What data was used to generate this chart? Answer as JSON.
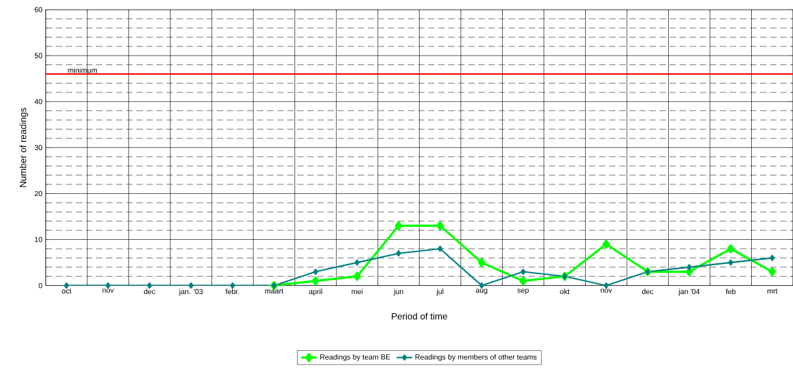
{
  "chart_data": {
    "type": "line",
    "xlabel": "Period of time",
    "ylabel": "Number of readings",
    "categories": [
      "oct",
      "nov",
      "dec",
      "jan. '03",
      "febr.",
      "maart",
      "april",
      "mei",
      "jun",
      "jul",
      "aug",
      "sep",
      "okt",
      "nov",
      "dec",
      "jan '04",
      "feb",
      "mrt"
    ],
    "series": [
      {
        "name": "Readings by team BE",
        "color": "#00ff00",
        "values": [
          null,
          null,
          null,
          null,
          null,
          0,
          1,
          2,
          13,
          13,
          5,
          1,
          2,
          9,
          3,
          3,
          8,
          3
        ]
      },
      {
        "name": "Readings by members of other teams",
        "color": "#008080",
        "values": [
          0,
          0,
          0,
          0,
          0,
          0,
          3,
          5,
          7,
          8,
          0,
          3,
          2,
          0,
          3,
          4,
          5,
          6
        ]
      }
    ],
    "ylim": [
      0,
      60
    ],
    "yticks": [
      0,
      10,
      20,
      30,
      40,
      50,
      60
    ],
    "ref_lines": [
      {
        "axis": "y",
        "value": 46,
        "label": "minimum",
        "color": "#ff0000"
      }
    ],
    "grid": true,
    "legend": "bottom",
    "marker": "diamond",
    "line_style": "solid"
  }
}
